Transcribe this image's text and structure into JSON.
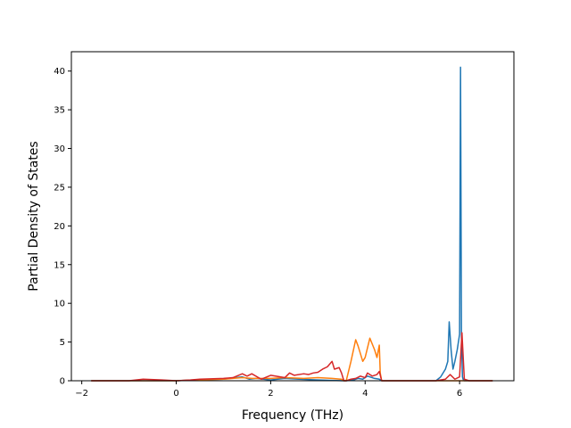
{
  "chart_data": {
    "type": "line",
    "title": "",
    "xlabel": "Frequency (THz)",
    "ylabel": "Partial Density of States",
    "xlim": [
      -2.22,
      7.15
    ],
    "ylim": [
      0,
      42.5
    ],
    "xticks": [
      -2,
      0,
      2,
      4,
      6
    ],
    "yticks": [
      0,
      5,
      10,
      15,
      20,
      25,
      30,
      35,
      40
    ],
    "grid": false,
    "legend": "none",
    "series": [
      {
        "color": "#1f77b4",
        "x": [
          -1.8,
          -1.0,
          0.0,
          0.4,
          1.0,
          1.4,
          1.55,
          1.7,
          2.0,
          2.3,
          2.6,
          3.0,
          3.3,
          3.55,
          3.6,
          3.75,
          3.85,
          3.95,
          4.05,
          4.2,
          4.3,
          4.35,
          5.5,
          5.6,
          5.7,
          5.75,
          5.78,
          5.82,
          5.86,
          5.9,
          5.95,
          6.0,
          6.02,
          6.04,
          6.06,
          6.08,
          6.1,
          6.2,
          6.7
        ],
        "y": [
          0,
          0,
          0,
          0.1,
          0.2,
          0.5,
          0.2,
          0.3,
          0.1,
          0.3,
          0.2,
          0.1,
          0.05,
          0,
          0,
          0.1,
          0.3,
          0.2,
          0.6,
          0.3,
          0.2,
          0,
          0,
          0.5,
          1.5,
          2.5,
          7.6,
          4.0,
          1.5,
          2.5,
          4.0,
          6.0,
          40.5,
          6.0,
          0.5,
          0.1,
          0,
          0,
          0
        ]
      },
      {
        "color": "#ff7f0e",
        "x": [
          -1.8,
          -1.0,
          0.0,
          0.4,
          1.0,
          1.4,
          1.6,
          2.0,
          2.3,
          2.7,
          3.0,
          3.3,
          3.5,
          3.55,
          3.6,
          3.7,
          3.8,
          3.85,
          3.95,
          4.0,
          4.1,
          4.2,
          4.25,
          4.3,
          4.32,
          4.35,
          5.5,
          6.7
        ],
        "y": [
          0,
          0,
          0,
          0.1,
          0.2,
          0.4,
          0.3,
          0.3,
          0.4,
          0.3,
          0.4,
          0.3,
          0.2,
          0,
          0,
          2.5,
          5.3,
          4.5,
          2.5,
          3.0,
          5.5,
          4.0,
          3.0,
          4.6,
          1.0,
          0,
          0,
          0
        ]
      },
      {
        "color": "#d62728",
        "x": [
          -1.8,
          -1.0,
          -0.7,
          -0.3,
          0.0,
          0.3,
          0.5,
          1.0,
          1.2,
          1.4,
          1.5,
          1.6,
          1.8,
          2.0,
          2.2,
          2.3,
          2.4,
          2.5,
          2.7,
          2.8,
          2.9,
          3.0,
          3.1,
          3.2,
          3.3,
          3.35,
          3.45,
          3.5,
          3.55,
          3.6,
          3.7,
          3.8,
          3.9,
          4.0,
          4.05,
          4.15,
          4.25,
          4.3,
          4.35,
          5.5,
          5.7,
          5.8,
          5.9,
          6.0,
          6.05,
          6.1,
          6.2,
          6.7
        ],
        "y": [
          0,
          0,
          0.2,
          0.1,
          0,
          0.1,
          0.2,
          0.3,
          0.4,
          0.9,
          0.6,
          0.9,
          0.2,
          0.7,
          0.5,
          0.4,
          1.0,
          0.7,
          0.9,
          0.8,
          1.0,
          1.1,
          1.5,
          1.8,
          2.5,
          1.5,
          1.7,
          1.0,
          0,
          0,
          0.2,
          0.3,
          0.6,
          0.4,
          1.0,
          0.6,
          0.8,
          1.2,
          0,
          0,
          0.2,
          0.8,
          0.2,
          0.5,
          6.2,
          0.2,
          0,
          0
        ]
      }
    ]
  }
}
